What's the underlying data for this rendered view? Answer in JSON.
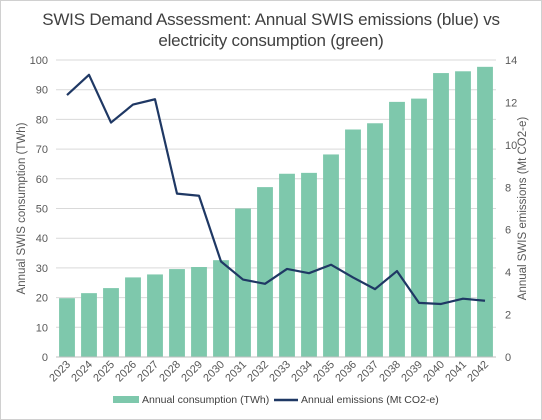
{
  "chart_data": {
    "type": "bar+line",
    "title_line1": "SWIS Demand Assessment: Annual SWIS emissions (blue) vs",
    "title_line2": "electricity consumption (green)",
    "categories": [
      "2023",
      "2024",
      "2025",
      "2026",
      "2027",
      "2028",
      "2029",
      "2030",
      "2031",
      "2032",
      "2033",
      "2034",
      "2035",
      "2036",
      "2037",
      "2038",
      "2039",
      "2040",
      "2041",
      "2042"
    ],
    "series": [
      {
        "name": "Annual consumption (TWh)",
        "type": "bar",
        "axis": "left",
        "color": "#7ec8ac",
        "values": [
          19.8,
          21.5,
          23.2,
          26.8,
          27.8,
          29.6,
          30.3,
          32.6,
          50.0,
          57.2,
          61.7,
          62.0,
          68.2,
          76.6,
          78.7,
          85.9,
          87.0,
          95.6,
          96.2,
          97.7
        ]
      },
      {
        "name": "Annual emissions (Mt CO2-e)",
        "type": "line",
        "axis": "right",
        "color": "#1f3864",
        "values": [
          12.35,
          13.3,
          11.05,
          11.9,
          12.15,
          7.7,
          7.6,
          4.5,
          3.65,
          3.45,
          4.15,
          3.95,
          4.35,
          3.75,
          3.2,
          4.05,
          2.55,
          2.5,
          2.75,
          2.65
        ]
      }
    ],
    "ylabel_left": "Annual SWIS consumption (TWh)",
    "ylabel_right": "Annual SWIS emissions (Mt CO2-e)",
    "ylim_left": [
      0,
      100
    ],
    "yticks_left": [
      0,
      10,
      20,
      30,
      40,
      50,
      60,
      70,
      80,
      90,
      100
    ],
    "ylim_right": [
      0,
      14
    ],
    "yticks_right": [
      0,
      2,
      4,
      6,
      8,
      10,
      12,
      14
    ],
    "grid": true,
    "legend": "bottom"
  }
}
